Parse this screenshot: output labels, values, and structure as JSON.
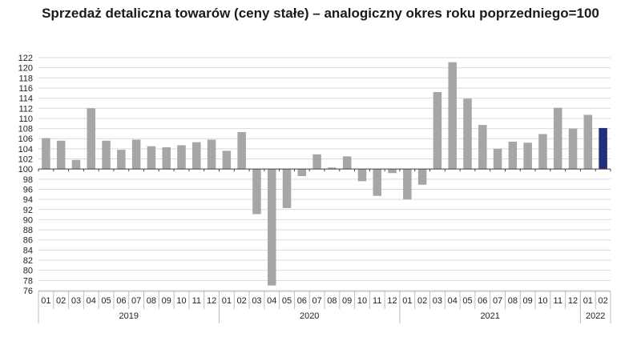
{
  "chart_data": {
    "type": "bar",
    "title": "Sprzedaż detaliczna towarów (ceny stałe) – analogiczny okres roku poprzedniego=100",
    "xlabel": "",
    "ylabel": "",
    "baseline": 100,
    "ylim": [
      76,
      122
    ],
    "yticks": [
      76,
      78,
      80,
      82,
      84,
      86,
      88,
      90,
      92,
      94,
      96,
      98,
      100,
      102,
      104,
      106,
      108,
      110,
      112,
      114,
      116,
      118,
      120,
      122
    ],
    "grid": true,
    "categories": [
      "01",
      "02",
      "03",
      "04",
      "05",
      "06",
      "07",
      "08",
      "09",
      "10",
      "11",
      "12",
      "01",
      "02",
      "03",
      "04",
      "05",
      "06",
      "07",
      "08",
      "09",
      "10",
      "11",
      "12",
      "01",
      "02",
      "03",
      "04",
      "05",
      "06",
      "07",
      "08",
      "09",
      "10",
      "11",
      "12",
      "01",
      "02"
    ],
    "values": [
      106.1,
      105.6,
      101.8,
      112.0,
      105.6,
      103.8,
      105.8,
      104.5,
      104.3,
      104.7,
      105.3,
      105.8,
      103.6,
      107.3,
      91.1,
      77.0,
      92.3,
      98.6,
      102.9,
      100.3,
      102.5,
      97.6,
      94.7,
      99.2,
      94.0,
      96.9,
      115.2,
      121.1,
      113.9,
      108.7,
      104.0,
      105.4,
      105.2,
      106.9,
      112.1,
      108.0,
      110.7,
      108.1
    ],
    "years": [
      {
        "label": "2019",
        "start": 0,
        "count": 12
      },
      {
        "label": "2020",
        "start": 12,
        "count": 12
      },
      {
        "label": "2021",
        "start": 24,
        "count": 12
      },
      {
        "label": "2022",
        "start": 36,
        "count": 2
      }
    ],
    "colors": {
      "default": "#a6a6a6",
      "highlight": "#1f2f7a",
      "grid": "#d9d9d9",
      "axis": "#444444"
    },
    "highlight_index": 37
  }
}
